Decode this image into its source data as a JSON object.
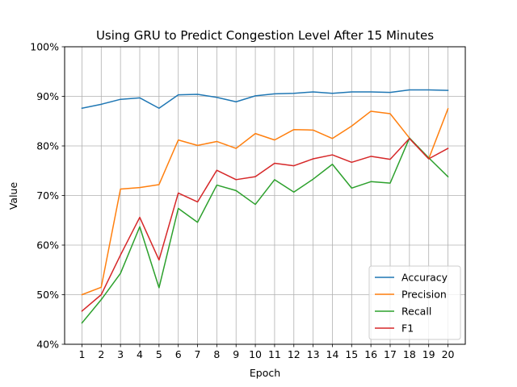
{
  "chart_data": {
    "type": "line",
    "title": "Using GRU to Predict Congestion Level After 15 Minutes",
    "xlabel": "Epoch",
    "ylabel": "Value",
    "x": [
      1,
      2,
      3,
      4,
      5,
      6,
      7,
      8,
      9,
      10,
      11,
      12,
      13,
      14,
      15,
      16,
      17,
      18,
      19,
      20
    ],
    "xlim": [
      0.1,
      20.9
    ],
    "ylim": [
      0.4,
      1.0
    ],
    "yticks": [
      0.4,
      0.5,
      0.6,
      0.7,
      0.8,
      0.9,
      1.0
    ],
    "ytick_labels": [
      "40%",
      "50%",
      "60%",
      "70%",
      "80%",
      "90%",
      "100%"
    ],
    "grid": true,
    "legend_position": "lower-right",
    "series": [
      {
        "name": "Accuracy",
        "color": "#1f77b4",
        "values": [
          0.876,
          0.884,
          0.894,
          0.897,
          0.876,
          0.903,
          0.904,
          0.898,
          0.889,
          0.901,
          0.905,
          0.906,
          0.909,
          0.906,
          0.909,
          0.909,
          0.908,
          0.913,
          0.913,
          0.912
        ]
      },
      {
        "name": "Precision",
        "color": "#ff7f0e",
        "values": [
          0.5,
          0.515,
          0.713,
          0.716,
          0.722,
          0.812,
          0.801,
          0.809,
          0.795,
          0.825,
          0.812,
          0.833,
          0.832,
          0.815,
          0.84,
          0.87,
          0.865,
          0.816,
          0.774,
          0.875
        ]
      },
      {
        "name": "Recall",
        "color": "#2ca02c",
        "values": [
          0.443,
          0.49,
          0.543,
          0.637,
          0.514,
          0.674,
          0.646,
          0.721,
          0.71,
          0.682,
          0.732,
          0.707,
          0.733,
          0.763,
          0.715,
          0.728,
          0.725,
          0.816,
          0.776,
          0.738
        ]
      },
      {
        "name": "F1",
        "color": "#d62728",
        "values": [
          0.467,
          0.5,
          0.58,
          0.656,
          0.57,
          0.705,
          0.687,
          0.751,
          0.732,
          0.738,
          0.765,
          0.76,
          0.774,
          0.782,
          0.767,
          0.779,
          0.773,
          0.815,
          0.774,
          0.795
        ]
      }
    ]
  }
}
